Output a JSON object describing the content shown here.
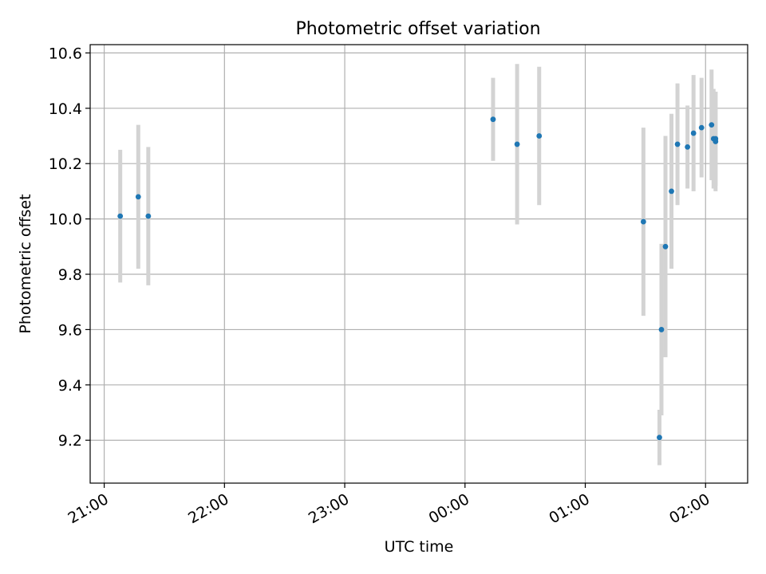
{
  "chart_data": {
    "type": "scatter",
    "title": "Photometric offset variation",
    "xlabel": "UTC time",
    "ylabel": "Photometric offset",
    "x_axis": "time",
    "xlim": [
      "20:53",
      "02:21"
    ],
    "ylim": [
      9.045,
      10.63
    ],
    "x_ticks": [
      "21:00",
      "22:00",
      "23:00",
      "00:00",
      "01:00",
      "02:00"
    ],
    "y_ticks": [
      "9.2",
      "9.4",
      "9.6",
      "9.8",
      "10.0",
      "10.2",
      "10.4",
      "10.6"
    ],
    "grid": true,
    "legend": "none",
    "colors": {
      "points": "#1f77b4",
      "errorbars": "#d3d3d3",
      "grid": "#b0b0b0"
    },
    "series": [
      {
        "points": [
          {
            "x": "21:08",
            "y": 10.01,
            "err": 0.24
          },
          {
            "x": "21:17",
            "y": 10.08,
            "err": 0.26
          },
          {
            "x": "21:22",
            "y": 10.01,
            "err": 0.25
          },
          {
            "x": "00:14",
            "y": 10.36,
            "err": 0.15
          },
          {
            "x": "00:26",
            "y": 10.27,
            "err": 0.29
          },
          {
            "x": "00:37",
            "y": 10.3,
            "err": 0.25
          },
          {
            "x": "01:29",
            "y": 9.99,
            "err": 0.34
          },
          {
            "x": "01:37",
            "y": 9.21,
            "err": 0.1
          },
          {
            "x": "01:38",
            "y": 9.6,
            "err": 0.31
          },
          {
            "x": "01:40",
            "y": 9.9,
            "err": 0.4
          },
          {
            "x": "01:43",
            "y": 10.1,
            "err": 0.28
          },
          {
            "x": "01:46",
            "y": 10.27,
            "err": 0.22
          },
          {
            "x": "01:51",
            "y": 10.26,
            "err": 0.15
          },
          {
            "x": "01:54",
            "y": 10.31,
            "err": 0.21
          },
          {
            "x": "01:58",
            "y": 10.33,
            "err": 0.18
          },
          {
            "x": "02:03",
            "y": 10.34,
            "err": 0.2
          },
          {
            "x": "02:04",
            "y": 10.29,
            "err": 0.18
          },
          {
            "x": "02:05",
            "y": 10.29,
            "err": 0.17
          },
          {
            "x": "02:05",
            "y": 10.28,
            "err": 0.18
          }
        ]
      }
    ]
  }
}
